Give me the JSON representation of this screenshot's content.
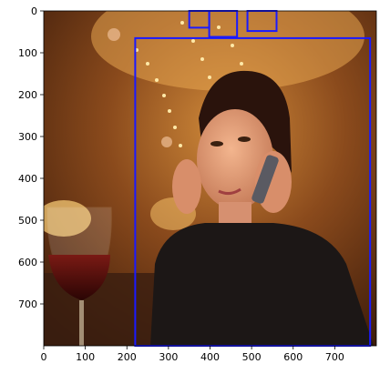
{
  "figure": {
    "image_description_icon": "photo-woman-on-phone-icon",
    "x_ticks": [
      "0",
      "100",
      "200",
      "300",
      "400",
      "500",
      "600",
      "700"
    ],
    "y_ticks": [
      "0",
      "100",
      "200",
      "300",
      "400",
      "500",
      "600",
      "700"
    ],
    "x_range": [
      0,
      800
    ],
    "y_range": [
      800,
      0
    ],
    "box_color": "#1a1aff"
  },
  "chart_data": {
    "type": "image-with-bounding-boxes",
    "xlim": [
      0,
      800
    ],
    "ylim": [
      800,
      0
    ],
    "boxes": [
      {
        "x0": 350,
        "y0": 0,
        "x1": 398,
        "y1": 40
      },
      {
        "x0": 398,
        "y0": 0,
        "x1": 465,
        "y1": 62
      },
      {
        "x0": 490,
        "y0": 0,
        "x1": 560,
        "y1": 48
      },
      {
        "x0": 220,
        "y0": 65,
        "x1": 785,
        "y1": 800
      }
    ]
  }
}
